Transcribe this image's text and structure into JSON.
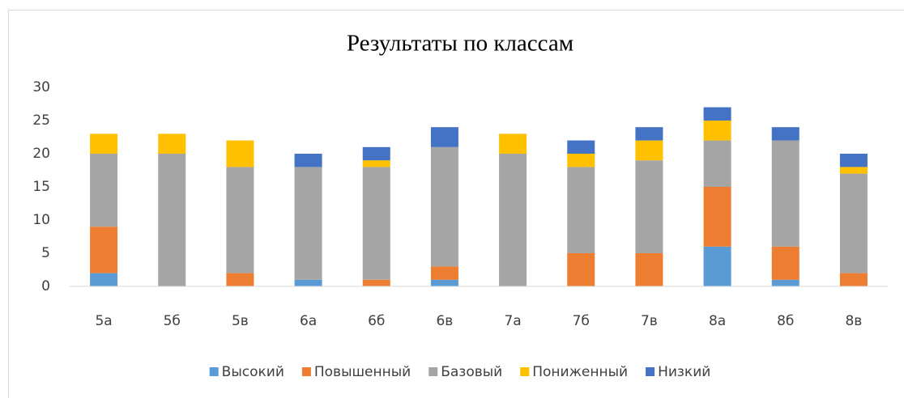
{
  "chart_data": {
    "type": "stacked_bar",
    "title": "Результаты по классам",
    "categories": [
      "5а",
      "5б",
      "5в",
      "6а",
      "6б",
      "6в",
      "7а",
      "7б",
      "7в",
      "8а",
      "8б",
      "8в"
    ],
    "series": [
      {
        "name": "Высокий",
        "color": "#5b9bd5",
        "values": [
          2,
          0,
          0,
          1,
          0,
          1,
          0,
          0,
          0,
          6,
          1,
          0
        ]
      },
      {
        "name": "Повышенный",
        "color": "#ed7d31",
        "values": [
          7,
          0,
          2,
          0,
          1,
          2,
          0,
          5,
          5,
          9,
          5,
          2
        ]
      },
      {
        "name": "Базовый",
        "color": "#a5a5a5",
        "values": [
          11,
          20,
          16,
          17,
          17,
          18,
          20,
          13,
          14,
          7,
          16,
          15
        ]
      },
      {
        "name": "Пониженный",
        "color": "#ffc000",
        "values": [
          3,
          3,
          4,
          0,
          1,
          0,
          3,
          2,
          3,
          3,
          0,
          1
        ]
      },
      {
        "name": "Низкий",
        "color": "#4472c4",
        "values": [
          0,
          0,
          0,
          2,
          2,
          3,
          0,
          2,
          2,
          2,
          2,
          2
        ]
      }
    ],
    "ylim": [
      0,
      30
    ],
    "yticks": [
      0,
      5,
      10,
      15,
      20,
      25,
      30
    ],
    "grid": false,
    "legend": "bottom"
  }
}
